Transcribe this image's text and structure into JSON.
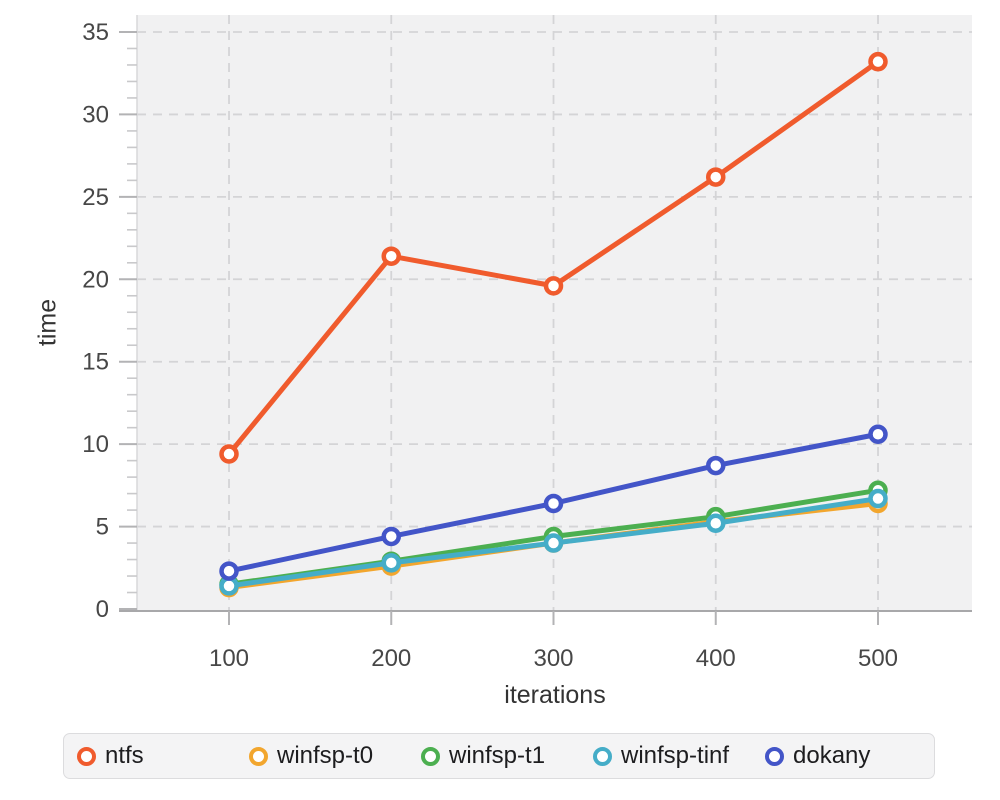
{
  "chart_data": {
    "type": "line",
    "title": "",
    "xlabel": "iterations",
    "ylabel": "time",
    "x": [
      100,
      200,
      300,
      400,
      500
    ],
    "x_ticks": [
      100,
      200,
      300,
      400,
      500
    ],
    "y_ticks": [
      0,
      5,
      10,
      15,
      20,
      25,
      30,
      35
    ],
    "xlim": [
      44,
      558
    ],
    "ylim": [
      0,
      35
    ],
    "grid": "dashed-major-both-axes",
    "legend_position": "bottom",
    "marker": "open-circle",
    "series": [
      {
        "name": "ntfs",
        "color": "#F05B2D",
        "values": [
          9.4,
          21.4,
          19.6,
          26.2,
          33.2
        ]
      },
      {
        "name": "winfsp-t0",
        "color": "#F2A62E",
        "values": [
          1.3,
          2.6,
          4.0,
          5.3,
          6.4
        ]
      },
      {
        "name": "winfsp-t1",
        "color": "#4CAF50",
        "values": [
          1.5,
          2.9,
          4.4,
          5.6,
          7.2
        ]
      },
      {
        "name": "winfsp-tinf",
        "color": "#45ADC8",
        "values": [
          1.4,
          2.8,
          4.0,
          5.2,
          6.7
        ]
      },
      {
        "name": "dokany",
        "color": "#4355C8",
        "values": [
          2.3,
          4.4,
          6.4,
          8.7,
          10.6
        ]
      }
    ],
    "style": {
      "plot_bg": "#f1f1f2",
      "grid_color": "#d4d4d6",
      "axis_color": "#a8a8aa",
      "tick_color": "#b3b3b5",
      "minor_tick_color": "#c9c9cb",
      "tick_label_color": "#474747",
      "line_width": 5
    }
  }
}
